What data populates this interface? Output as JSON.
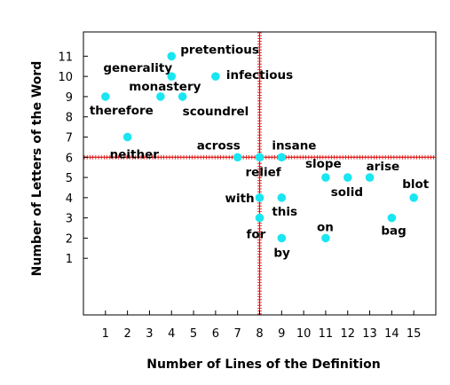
{
  "chart_data": {
    "type": "scatter",
    "title": "",
    "xlabel": "Number of Lines of the Definition",
    "ylabel": "Number of Letters of the Word",
    "xlim": [
      0,
      16
    ],
    "ylim": [
      -1.8,
      12.2
    ],
    "xticks": [
      1,
      2,
      3,
      4,
      5,
      6,
      7,
      8,
      9,
      10,
      11,
      12,
      13,
      14,
      15
    ],
    "yticks": [
      1,
      2,
      3,
      4,
      5,
      6,
      7,
      8,
      9,
      10,
      11
    ],
    "reference_lines": {
      "x": 8,
      "y": 6
    },
    "grid": false,
    "colors": {
      "points": "#19e6f0",
      "reference": "#dd1111",
      "axis": "#000000"
    },
    "points": [
      {
        "label": "pretentious",
        "x": 4,
        "y": 11
      },
      {
        "label": "generality",
        "x": 4,
        "y": 10
      },
      {
        "label": "infectious",
        "x": 6,
        "y": 10
      },
      {
        "label": "monastery",
        "x": 3.5,
        "y": 9
      },
      {
        "label": "scoundrel",
        "x": 4.5,
        "y": 9
      },
      {
        "label": "therefore",
        "x": 1,
        "y": 9
      },
      {
        "label": "neither",
        "x": 2,
        "y": 7
      },
      {
        "label": "across",
        "x": 7,
        "y": 6
      },
      {
        "label": "relief",
        "x": 8,
        "y": 6
      },
      {
        "label": "insane",
        "x": 9,
        "y": 6
      },
      {
        "label": "slope",
        "x": 11,
        "y": 5
      },
      {
        "label": "solid",
        "x": 12,
        "y": 5
      },
      {
        "label": "arise",
        "x": 13,
        "y": 5
      },
      {
        "label": "blot",
        "x": 15,
        "y": 4
      },
      {
        "label": "with",
        "x": 8,
        "y": 4
      },
      {
        "label": "this",
        "x": 9,
        "y": 4
      },
      {
        "label": "for",
        "x": 8,
        "y": 3
      },
      {
        "label": "bag",
        "x": 14,
        "y": 3
      },
      {
        "label": "on",
        "x": 11,
        "y": 2
      },
      {
        "label": "by",
        "x": 9,
        "y": 2
      }
    ]
  }
}
